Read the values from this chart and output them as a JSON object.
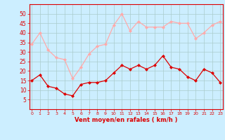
{
  "mean_wind": [
    15,
    18,
    12,
    11,
    8,
    7,
    13,
    14,
    14,
    15,
    19,
    23,
    21,
    23,
    21,
    23,
    28,
    22,
    21,
    17,
    15,
    21,
    19,
    14
  ],
  "gust_wind": [
    34,
    40,
    31,
    27,
    26,
    16,
    22,
    29,
    33,
    34,
    44,
    50,
    41,
    46,
    43,
    43,
    43,
    46,
    45,
    45,
    37,
    40,
    44,
    46
  ],
  "x": [
    0,
    1,
    2,
    3,
    4,
    5,
    6,
    7,
    8,
    9,
    10,
    11,
    12,
    13,
    14,
    15,
    16,
    17,
    18,
    19,
    20,
    21,
    22,
    23
  ],
  "xlabel": "Vent moyen/en rafales ( km/h )",
  "ylim": [
    0,
    55
  ],
  "yticks": [
    5,
    10,
    15,
    20,
    25,
    30,
    35,
    40,
    45,
    50
  ],
  "mean_color": "#dd0000",
  "gust_color": "#ffaaaa",
  "bg_color": "#cceeff",
  "grid_color": "#aacccc",
  "axis_color": "#dd0000",
  "tick_color": "#dd0000",
  "label_color": "#dd0000",
  "marker": "D",
  "markersize": 2.0,
  "linewidth": 0.9
}
